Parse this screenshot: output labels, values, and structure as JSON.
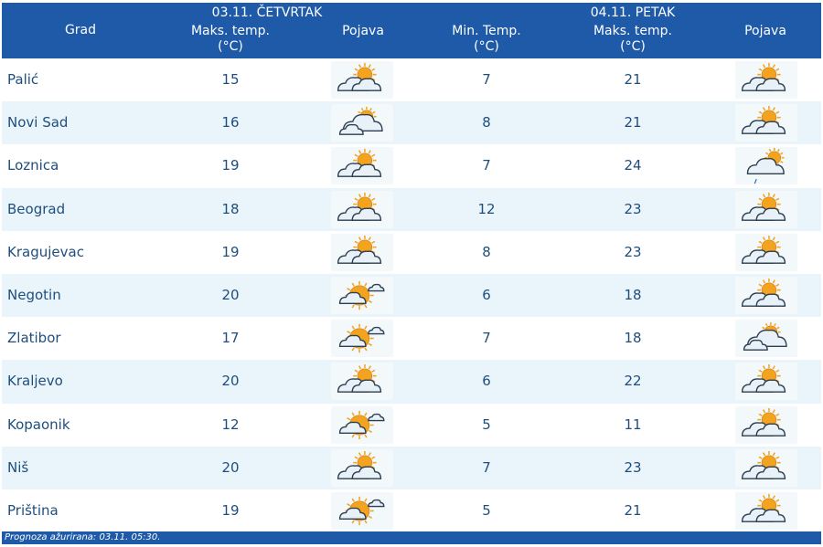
{
  "header": {
    "city_label": "Grad",
    "day1": {
      "date": "03.11. ČETVRTAK",
      "max_label": "Maks. temp.",
      "unit": "(°C)",
      "icon_label": "Pojava"
    },
    "day2": {
      "date": "04.11. PETAK",
      "min_label": "Min. Temp.",
      "min_unit": "(°C)",
      "max_label": "Maks. temp.",
      "max_unit": "(°C)",
      "icon_label": "Pojava"
    }
  },
  "rows": [
    {
      "city": "Palić",
      "day1_max": "15",
      "day1_icon": "partly-cloudy-icon",
      "day2_min": "7",
      "day2_max": "21",
      "day2_icon": "partly-cloudy-icon"
    },
    {
      "city": "Novi Sad",
      "day1_max": "16",
      "day1_icon": "mostly-cloudy-icon",
      "day2_min": "8",
      "day2_max": "21",
      "day2_icon": "partly-cloudy-icon"
    },
    {
      "city": "Loznica",
      "day1_max": "19",
      "day1_icon": "partly-cloudy-icon",
      "day2_min": "7",
      "day2_max": "24",
      "day2_icon": "cloudy-light-rain-icon"
    },
    {
      "city": "Beograd",
      "day1_max": "18",
      "day1_icon": "partly-cloudy-icon",
      "day2_min": "12",
      "day2_max": "23",
      "day2_icon": "partly-cloudy-icon"
    },
    {
      "city": "Kragujevac",
      "day1_max": "19",
      "day1_icon": "partly-cloudy-icon",
      "day2_min": "8",
      "day2_max": "23",
      "day2_icon": "partly-cloudy-icon"
    },
    {
      "city": "Negotin",
      "day1_max": "20",
      "day1_icon": "sunny-small-cloud-icon",
      "day2_min": "6",
      "day2_max": "18",
      "day2_icon": "partly-cloudy-icon"
    },
    {
      "city": "Zlatibor",
      "day1_max": "17",
      "day1_icon": "sunny-small-cloud-icon",
      "day2_min": "7",
      "day2_max": "18",
      "day2_icon": "mostly-cloudy-icon"
    },
    {
      "city": "Kraljevo",
      "day1_max": "20",
      "day1_icon": "partly-cloudy-icon",
      "day2_min": "6",
      "day2_max": "22",
      "day2_icon": "partly-cloudy-icon"
    },
    {
      "city": "Kopaonik",
      "day1_max": "12",
      "day1_icon": "sunny-small-cloud-icon",
      "day2_min": "5",
      "day2_max": "11",
      "day2_icon": "partly-cloudy-icon"
    },
    {
      "city": "Niš",
      "day1_max": "20",
      "day1_icon": "partly-cloudy-icon",
      "day2_min": "7",
      "day2_max": "23",
      "day2_icon": "partly-cloudy-icon"
    },
    {
      "city": "Priština",
      "day1_max": "19",
      "day1_icon": "sunny-small-cloud-icon",
      "day2_min": "5",
      "day2_max": "21",
      "day2_icon": "partly-cloudy-icon"
    }
  ],
  "footer": {
    "text": "Prognoza ažurirana:  03.11. 05:30."
  },
  "colors": {
    "header_bg": "#1e5aa8",
    "text": "#1f4e7d",
    "alt_row": "#eaf5fb",
    "sun": "#f4a31f",
    "cloud": "#e8f1f8"
  }
}
